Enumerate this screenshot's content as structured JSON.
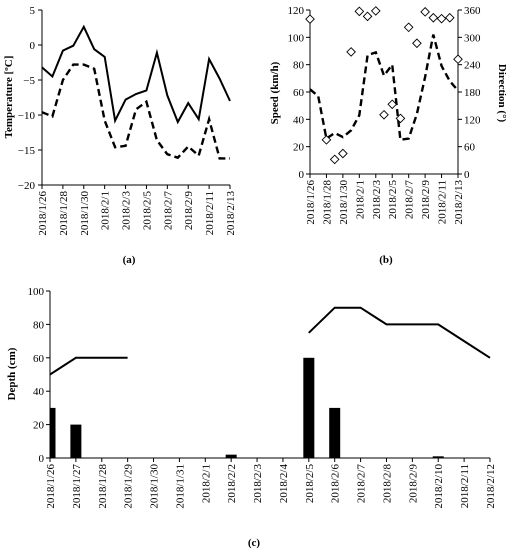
{
  "chart_data": [
    {
      "type": "line",
      "panel_label": "(a)",
      "ylabel": "Temperature [ºC]",
      "ylim": [
        -20,
        5
      ],
      "yticks": [
        5,
        0,
        -5,
        -10,
        -15,
        -20
      ],
      "xtick_labels": [
        "2018/1/26",
        "2018/1/28",
        "2018/1/30",
        "2018/2/1",
        "2018/2/3",
        "2018/2/5",
        "2018/2/7",
        "2018/2/9",
        "2018/2/11",
        "2018/2/13"
      ],
      "x": [
        "2018/1/26",
        "2018/1/27",
        "2018/1/28",
        "2018/1/29",
        "2018/1/30",
        "2018/1/31",
        "2018/2/1",
        "2018/2/2",
        "2018/2/3",
        "2018/2/4",
        "2018/2/5",
        "2018/2/6",
        "2018/2/7",
        "2018/2/8",
        "2018/2/9",
        "2018/2/10",
        "2018/2/11",
        "2018/2/12",
        "2018/2/13"
      ],
      "series": [
        {
          "style": "solid",
          "values": [
            -3.2,
            -4.5,
            -0.8,
            -0.1,
            2.6,
            -0.6,
            -1.7,
            -10.8,
            -7.8,
            -7.0,
            -6.5,
            -1.1,
            -7.2,
            -11.0,
            -8.3,
            -10.6,
            -2.0,
            -4.8,
            -8.0
          ]
        },
        {
          "style": "dashed",
          "values": [
            -9.6,
            -10.2,
            -5.0,
            -2.8,
            -2.8,
            -3.4,
            -10.8,
            -14.6,
            -14.4,
            -9.2,
            -8.1,
            -13.6,
            -15.6,
            -16.1,
            -14.5,
            -15.8,
            -10.6,
            -16.2,
            -16.2
          ]
        }
      ]
    },
    {
      "type": "line",
      "panel_label": "(b)",
      "ylabel": "Speed (km/h)",
      "y2label": "Direction (°)",
      "ylim": [
        0,
        120
      ],
      "y2lim": [
        0,
        360
      ],
      "yticks": [
        0,
        20,
        40,
        60,
        80,
        100,
        120
      ],
      "y2ticks": [
        0,
        60,
        120,
        180,
        240,
        300,
        360
      ],
      "xtick_labels": [
        "2018/1/26",
        "2018/1/28",
        "2018/1/30",
        "2018/2/1",
        "2018/2/3",
        "2018/2/5",
        "2018/2/7",
        "2018/2/9",
        "2018/2/11",
        "2018/2/13"
      ],
      "x": [
        "2018/1/26",
        "2018/1/27",
        "2018/1/28",
        "2018/1/29",
        "2018/1/30",
        "2018/1/31",
        "2018/2/1",
        "2018/2/2",
        "2018/2/3",
        "2018/2/4",
        "2018/2/5",
        "2018/2/6",
        "2018/2/7",
        "2018/2/8",
        "2018/2/9",
        "2018/2/10",
        "2018/2/11",
        "2018/2/12",
        "2018/2/13"
      ],
      "series": [
        {
          "style": "dashed",
          "axis": "speed",
          "values": [
            62,
            57,
            26,
            30,
            27,
            32,
            43,
            87,
            89,
            72,
            80,
            25,
            26,
            44,
            71,
            102,
            79,
            68,
            61
          ]
        },
        {
          "style": "diamond",
          "axis": "direction",
          "x": [
            "2018/1/26",
            "2018/1/28",
            "2018/1/29",
            "2018/1/30",
            "2018/1/31",
            "2018/2/1",
            "2018/2/2",
            "2018/2/3",
            "2018/2/4",
            "2018/2/5",
            "2018/2/6",
            "2018/2/7",
            "2018/2/8",
            "2018/2/9",
            "2018/2/10",
            "2018/2/11",
            "2018/2/12",
            "2018/2/13"
          ],
          "values": [
            340,
            75,
            32,
            45,
            268,
            357,
            346,
            358,
            130,
            153,
            122,
            322,
            287,
            356,
            343,
            341,
            343,
            252
          ]
        }
      ]
    },
    {
      "type": "bar",
      "panel_label": "(c)",
      "ylabel": "Depth (cm)",
      "ylim": [
        0,
        100
      ],
      "yticks": [
        0,
        20,
        40,
        60,
        80,
        100
      ],
      "categories": [
        "2018/1/26",
        "2018/1/27",
        "2018/1/28",
        "2018/1/29",
        "2018/1/30",
        "2018/1/31",
        "2018/2/1",
        "2018/2/2",
        "2018/2/3",
        "2018/2/4",
        "2018/2/5",
        "2018/2/6",
        "2018/2/7",
        "2018/2/8",
        "2018/2/9",
        "2018/2/10",
        "2018/2/11",
        "2018/2/12"
      ],
      "bars": [
        30,
        20,
        0,
        0,
        0,
        0,
        0,
        2,
        0,
        0,
        60,
        30,
        0,
        0,
        0,
        1,
        0,
        0
      ],
      "line_segments": [
        {
          "x": [
            "2018/1/26",
            "2018/1/27",
            "2018/1/28",
            "2018/1/29"
          ],
          "values": [
            50,
            60,
            60,
            60
          ]
        },
        {
          "x": [
            "2018/2/5",
            "2018/2/6",
            "2018/2/7",
            "2018/2/8",
            "2018/2/9",
            "2018/2/10",
            "2018/2/11",
            "2018/2/12"
          ],
          "values": [
            75,
            90,
            90,
            80,
            80,
            80,
            70,
            60
          ]
        }
      ]
    }
  ]
}
